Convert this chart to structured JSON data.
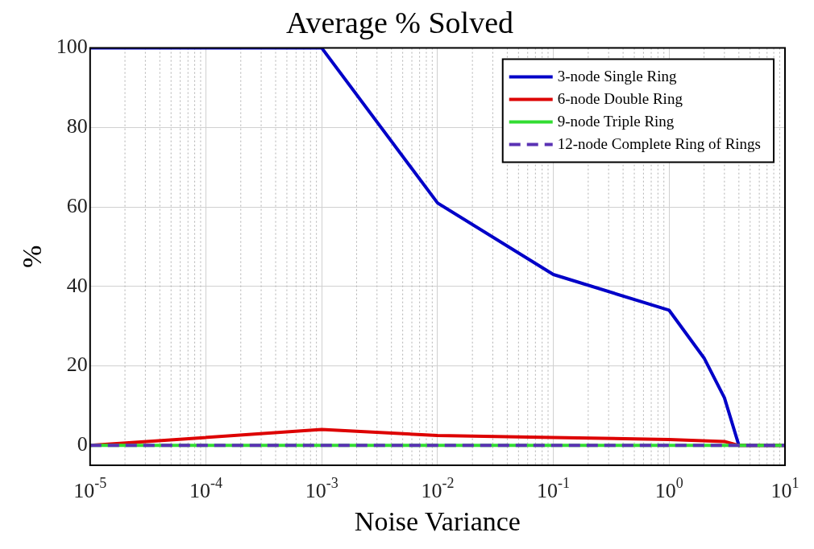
{
  "chart_data": {
    "type": "line",
    "title": "Average % Solved",
    "xlabel": "Noise Variance",
    "ylabel": "%",
    "xlim": [
      1e-05,
      10
    ],
    "ylim": [
      -5,
      100
    ],
    "xticks": [
      {
        "value": 1e-05,
        "label": "10$^{-5}$"
      },
      {
        "value": 0.0001,
        "label": "10$^{-4}$"
      },
      {
        "value": 0.001,
        "label": "10$^{-3}$"
      },
      {
        "value": 0.01,
        "label": "10$^{-2}$"
      },
      {
        "value": 0.1,
        "label": "10$^{-1}$"
      },
      {
        "value": 1,
        "label": "10$^{0}$"
      },
      {
        "value": 10,
        "label": "10$^{1}$"
      }
    ],
    "yticks": [
      0,
      20,
      40,
      60,
      80,
      100
    ],
    "log": "x",
    "grid": true,
    "legend": "top right",
    "series": [
      {
        "name": "3-node Single Ring",
        "color": "#0000c8",
        "line_style": "solid",
        "x": [
          1e-05,
          0.001,
          0.01,
          0.1,
          1,
          2,
          3,
          4,
          10
        ],
        "values": [
          100,
          100,
          61,
          43,
          34,
          22,
          12,
          0,
          0
        ]
      },
      {
        "name": "6-node Double Ring",
        "color": "#dd0000",
        "line_style": "solid",
        "x": [
          1e-05,
          0.001,
          0.01,
          0.1,
          1,
          3,
          4,
          10
        ],
        "values": [
          0,
          4,
          2.5,
          2,
          1.5,
          1,
          0,
          0
        ]
      },
      {
        "name": "9-node Triple Ring",
        "color": "#33dd33",
        "line_style": "solid",
        "x": [
          1e-05,
          10
        ],
        "values": [
          0,
          0
        ]
      },
      {
        "name": "12-node Complete Ring of Rings",
        "color": "#5a32b4",
        "line_style": "dashed",
        "x": [
          1e-05,
          10
        ],
        "values": [
          0,
          0
        ]
      }
    ]
  }
}
